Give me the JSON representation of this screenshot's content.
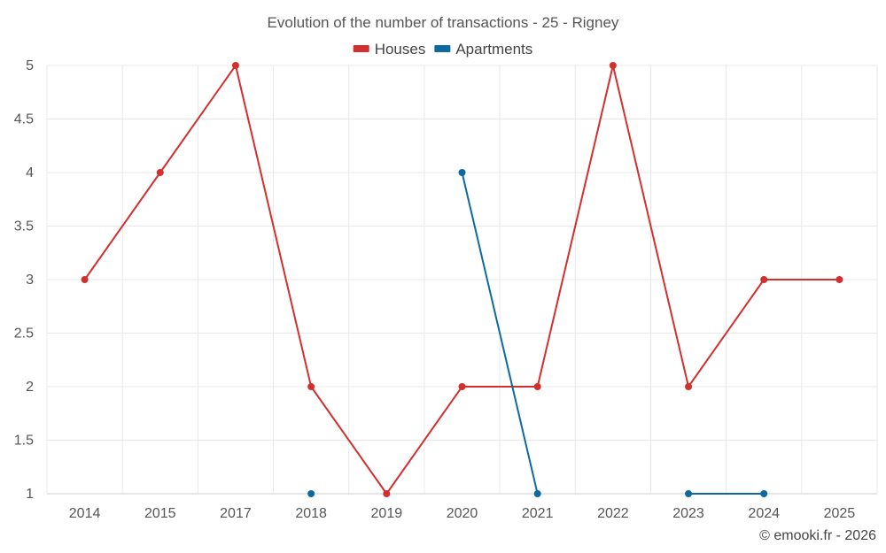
{
  "chart_data": {
    "type": "line",
    "title": "Evolution of the number of transactions - 25 - Rigney",
    "categories": [
      "2014",
      "2015",
      "2017",
      "2018",
      "2019",
      "2020",
      "2021",
      "2022",
      "2023",
      "2024",
      "2025"
    ],
    "series": [
      {
        "name": "Houses",
        "color": "#d32f2f",
        "values": [
          3,
          4,
          5,
          2,
          1,
          2,
          2,
          5,
          2,
          3,
          3
        ]
      },
      {
        "name": "Apartments",
        "color": "#0d6aa0",
        "values": [
          null,
          null,
          null,
          1,
          null,
          4,
          1,
          null,
          1,
          1,
          null
        ]
      }
    ],
    "ylim": [
      1,
      5
    ],
    "yticks": [
      "1",
      "1.5",
      "2",
      "2.5",
      "3",
      "3.5",
      "4",
      "4.5",
      "5"
    ],
    "xlabel": "",
    "ylabel": "",
    "grid": true,
    "legend_position": "top-center"
  },
  "credit": "© emooki.fr - 2026"
}
